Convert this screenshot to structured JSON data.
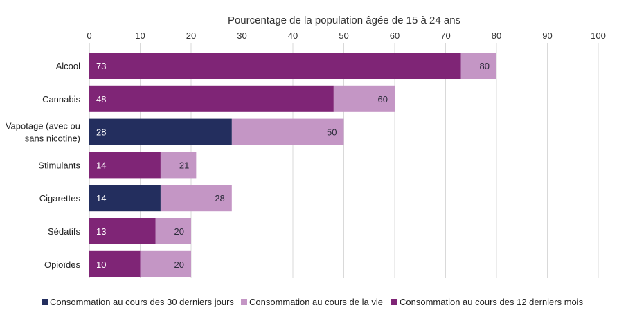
{
  "chart_data": {
    "type": "bar",
    "orientation": "horizontal",
    "xlabel": "Pourcentage de la population âgée de 15 à 24 ans",
    "xlim": [
      0,
      100
    ],
    "xticks": [
      "0",
      "10",
      "20",
      "30",
      "40",
      "50",
      "60",
      "70",
      "80",
      "90",
      "100"
    ],
    "grid": true,
    "legend_position": "bottom",
    "categories": [
      [
        "Alcool"
      ],
      [
        "Cannabis"
      ],
      [
        "Vapotage (avec ou",
        "sans nicotine)"
      ],
      [
        "Stimulants"
      ],
      [
        "Cigarettes"
      ],
      [
        "Sédatifs"
      ],
      [
        "Opioïdes"
      ]
    ],
    "series": [
      {
        "name": "Consommation au cours des 30 derniers jours",
        "color": "#232e5e"
      },
      {
        "name": "Consommation au cours de la vie",
        "color": "#c496c5"
      },
      {
        "name": "Consommation au cours des 12 derniers mois",
        "color": "#7f2576"
      }
    ],
    "bars": [
      {
        "inner": 73,
        "inner_series": 2,
        "lifetime": 80
      },
      {
        "inner": 48,
        "inner_series": 2,
        "lifetime": 60
      },
      {
        "inner": 28,
        "inner_series": 0,
        "lifetime": 50
      },
      {
        "inner": 14,
        "inner_series": 2,
        "lifetime": 21
      },
      {
        "inner": 14,
        "inner_series": 0,
        "lifetime": 28
      },
      {
        "inner": 13,
        "inner_series": 2,
        "lifetime": 20
      },
      {
        "inner": 10,
        "inner_series": 2,
        "lifetime": 20
      }
    ]
  }
}
